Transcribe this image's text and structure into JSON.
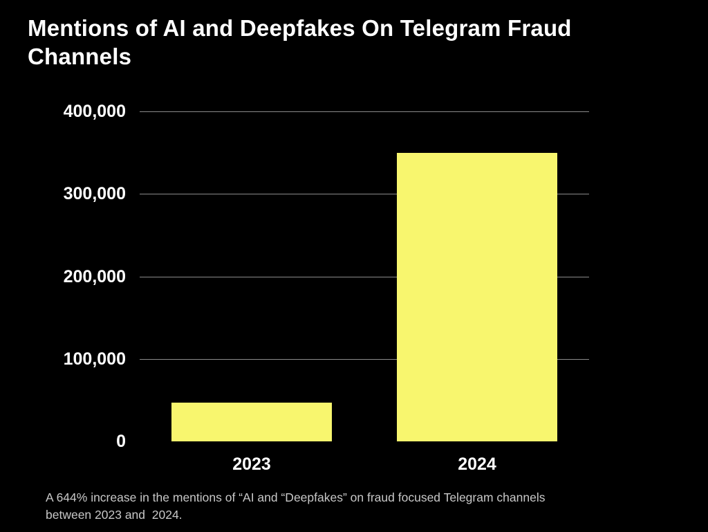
{
  "page": {
    "background": "#000000",
    "title": "Mentions of AI and Deepfakes On Telegram Fraud\nChannels",
    "caption": "A 644% increase in the mentions of “AI and “Deepfakes” on fraud focused Telegram channels\nbetween 2023 and  2024."
  },
  "colors": {
    "title": "#ffffff",
    "bar": "#f8f66e",
    "gridline": "#8c8c8c",
    "tick_label": "#ffffff",
    "caption": "#c8c8c8",
    "background": "#000000"
  },
  "chart_data": {
    "type": "bar",
    "title": "Mentions of AI and Deepfakes On Telegram Fraud Channels",
    "categories": [
      "2023",
      "2024"
    ],
    "values": [
      47000,
      350000
    ],
    "xlabel": "",
    "ylabel": "",
    "ylim": [
      0,
      400000
    ],
    "yticks": [
      0,
      100000,
      200000,
      300000,
      400000
    ],
    "ytick_labels": [
      "0",
      "100,000",
      "200,000",
      "300,000",
      "400,000"
    ],
    "grid": "horizontal gridlines at 100,000 intervals, no baseline at 0",
    "legend": "none",
    "annotation": "A 644% increase in the mentions of “AI and “Deepfakes” on fraud focused Telegram channels between 2023 and 2024."
  }
}
